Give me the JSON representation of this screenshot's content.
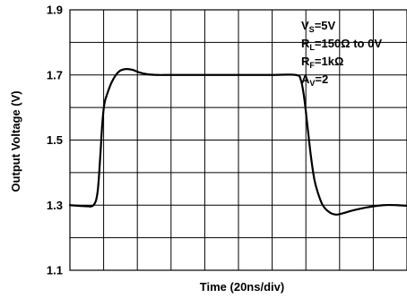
{
  "chart_data": {
    "type": "line",
    "title": "",
    "xlabel": "Time (20ns/div)",
    "ylabel": "Output Voltage (V)",
    "xlim": [
      0,
      10
    ],
    "ylim": [
      1.1,
      1.9
    ],
    "x_divisions": 10,
    "y_divisions": 8,
    "yticks": [
      {
        "value": 1.1,
        "label": "1.1"
      },
      {
        "value": 1.3,
        "label": "1.3"
      },
      {
        "value": 1.5,
        "label": "1.5"
      },
      {
        "value": 1.7,
        "label": "1.7"
      },
      {
        "value": 1.9,
        "label": "1.9"
      }
    ],
    "grid": true,
    "line_color": "#000000",
    "annotations": [
      {
        "main": "V",
        "sub": "S",
        "rest": "=5V"
      },
      {
        "main": "R",
        "sub": "L",
        "rest": "=150Ω to 0V"
      },
      {
        "main": "R",
        "sub": "F",
        "rest": "=1kΩ"
      },
      {
        "main": "A",
        "sub": "V",
        "rest": "=2"
      }
    ],
    "series": [
      {
        "x": [
          0.0,
          0.45,
          0.7,
          0.82,
          0.9,
          0.96,
          1.02,
          1.1,
          1.25,
          1.45,
          1.65,
          1.85,
          2.05,
          2.3,
          2.6,
          3.0,
          4.0,
          5.0,
          6.0,
          6.7,
          6.85,
          6.95,
          7.05,
          7.15,
          7.25,
          7.35,
          7.5,
          7.7,
          7.9,
          8.1,
          8.4,
          8.8,
          9.3,
          9.7,
          10.0
        ],
        "y": [
          1.3,
          1.297,
          1.3,
          1.34,
          1.45,
          1.55,
          1.61,
          1.64,
          1.68,
          1.71,
          1.718,
          1.716,
          1.708,
          1.702,
          1.7,
          1.7,
          1.7,
          1.7,
          1.7,
          1.7,
          1.685,
          1.63,
          1.54,
          1.45,
          1.38,
          1.34,
          1.3,
          1.278,
          1.271,
          1.275,
          1.284,
          1.293,
          1.3,
          1.3,
          1.298
        ]
      }
    ]
  }
}
